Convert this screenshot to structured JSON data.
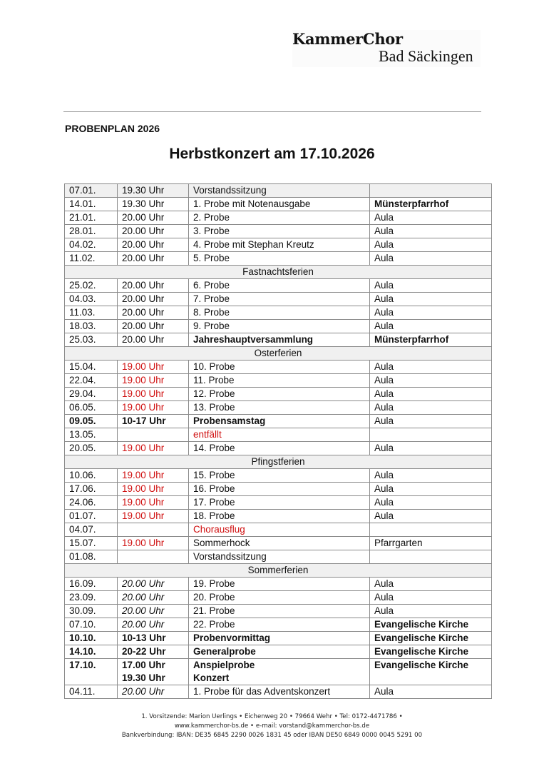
{
  "logo": {
    "line1": "KammerChor",
    "line2": "Bad Säckingen"
  },
  "heading": "PROBENPLAN 2026",
  "title": "Herbstkonzert am 17.10.2026",
  "colors": {
    "red": "#d01010",
    "shade": "#f0f0f0"
  },
  "rows": [
    {
      "date": "07.01.",
      "time": "19.30 Uhr",
      "event": "Vorstandssitzung",
      "place": "",
      "shade": true
    },
    {
      "date": "14.01.",
      "time": "19.30 Uhr",
      "event": "1. Probe mit Notenausgabe",
      "place": "Münsterpfarrhof",
      "bold": [
        "place"
      ]
    },
    {
      "date": "21.01.",
      "time": "20.00 Uhr",
      "event": "2. Probe",
      "place": "Aula"
    },
    {
      "date": "28.01.",
      "time": "20.00 Uhr",
      "event": "3. Probe",
      "place": "Aula"
    },
    {
      "date": "04.02.",
      "time": "20.00 Uhr",
      "event": "4. Probe mit Stephan Kreutz",
      "place": "Aula"
    },
    {
      "date": "11.02.",
      "time": "20.00 Uhr",
      "event": "5. Probe",
      "place": "Aula"
    },
    {
      "break": "Fastnachtsferien"
    },
    {
      "date": "25.02.",
      "time": "20.00 Uhr",
      "event": "6. Probe",
      "place": "Aula"
    },
    {
      "date": "04.03.",
      "time": "20.00 Uhr",
      "event": "7. Probe",
      "place": "Aula"
    },
    {
      "date": "11.03.",
      "time": "20.00 Uhr",
      "event": "8. Probe",
      "place": "Aula"
    },
    {
      "date": "18.03.",
      "time": "20.00 Uhr",
      "event": "9. Probe",
      "place": "Aula"
    },
    {
      "date": "25.03.",
      "time": "20.00 Uhr",
      "event": "Jahreshauptversammlung",
      "place": "Münsterpfarrhof",
      "bold": [
        "event",
        "place"
      ]
    },
    {
      "break": "Osterferien"
    },
    {
      "date": "15.04.",
      "time": "19.00 Uhr",
      "event": "10. Probe",
      "place": "Aula",
      "red": [
        "time"
      ]
    },
    {
      "date": "22.04.",
      "time": "19.00 Uhr",
      "event": "11. Probe",
      "place": "Aula",
      "red": [
        "time"
      ]
    },
    {
      "date": "29.04.",
      "time": "19.00 Uhr",
      "event": "12. Probe",
      "place": "Aula",
      "red": [
        "time"
      ]
    },
    {
      "date": "06.05.",
      "time": "19.00 Uhr",
      "event": "13. Probe",
      "place": "Aula",
      "red": [
        "time"
      ]
    },
    {
      "date": "09.05.",
      "time": "10-17 Uhr",
      "event": "Probensamstag",
      "place": "Aula",
      "bold": [
        "date",
        "time",
        "event"
      ]
    },
    {
      "date": "13.05.",
      "time": "",
      "event": "entfällt",
      "place": "",
      "red": [
        "event"
      ]
    },
    {
      "date": "20.05.",
      "time": "19.00 Uhr",
      "event": "14. Probe",
      "place": "Aula",
      "red": [
        "time"
      ]
    },
    {
      "break": "Pfingstferien"
    },
    {
      "date": "10.06.",
      "time": "19.00 Uhr",
      "event": "15. Probe",
      "place": "Aula",
      "red": [
        "time"
      ]
    },
    {
      "date": "17.06.",
      "time": "19.00 Uhr",
      "event": "16. Probe",
      "place": "Aula",
      "red": [
        "time"
      ]
    },
    {
      "date": "24.06.",
      "time": "19.00 Uhr",
      "event": "17. Probe",
      "place": "Aula",
      "red": [
        "time"
      ]
    },
    {
      "date": "01.07.",
      "time": "19.00 Uhr",
      "event": "18. Probe",
      "place": "Aula",
      "red": [
        "time"
      ]
    },
    {
      "date": "04.07.",
      "time": "",
      "event": "Chorausflug",
      "place": "",
      "red": [
        "event"
      ]
    },
    {
      "date": "15.07.",
      "time": "19.00 Uhr",
      "event": "Sommerhock",
      "place": "Pfarrgarten",
      "red": [
        "time"
      ]
    },
    {
      "date": "01.08.",
      "time": "",
      "event": "Vorstandssitzung",
      "place": ""
    },
    {
      "break": "Sommerferien"
    },
    {
      "date": "16.09.",
      "time": "20.00 Uhr",
      "event": "19. Probe",
      "place": "Aula",
      "italic": [
        "time"
      ]
    },
    {
      "date": "23.09.",
      "time": "20.00 Uhr",
      "event": "20. Probe",
      "place": "Aula",
      "italic": [
        "time"
      ]
    },
    {
      "date": "30.09.",
      "time": "20.00 Uhr",
      "event": "21. Probe",
      "place": "Aula",
      "italic": [
        "time"
      ]
    },
    {
      "date": "07.10.",
      "time": "20.00 Uhr",
      "event": "22. Probe",
      "place": "Evangelische Kirche",
      "italic": [
        "time"
      ],
      "bold": [
        "place"
      ]
    },
    {
      "date": "10.10.",
      "time": "10-13 Uhr",
      "event": "Probenvormittag",
      "place": "Evangelische Kirche",
      "bold": [
        "date",
        "time",
        "event",
        "place"
      ]
    },
    {
      "date": "14.10.",
      "time": "20-22 Uhr",
      "event": "Generalprobe",
      "place": "Evangelische Kirche",
      "bold": [
        "date",
        "time",
        "event",
        "place"
      ]
    },
    {
      "date": "17.10.",
      "time": "17.00 Uhr",
      "time2": "19.30 Uhr",
      "event": "Anspielprobe",
      "event2": "Konzert",
      "place": "Evangelische Kirche",
      "bold": [
        "date",
        "time",
        "event",
        "place"
      ]
    },
    {
      "date": "04.11.",
      "time": "20.00 Uhr",
      "event": "1. Probe für das Adventskonzert",
      "place": "Aula",
      "italic": [
        "time"
      ]
    }
  ],
  "footer": {
    "line1": "1. Vorsitzende:  Marion Uerlings  •  Eichenweg 20  •  79664 Wehr  •  Tel: 0172-4471786  •",
    "line2": "www.kammerchor-bs.de  •  e-mail: vorstand@kammerchor-bs.de",
    "line3": "Bankverbindung: IBAN: DE35 6845 2290 0026 1831 45 oder IBAN DE50 6849 0000 0045 5291 00"
  }
}
